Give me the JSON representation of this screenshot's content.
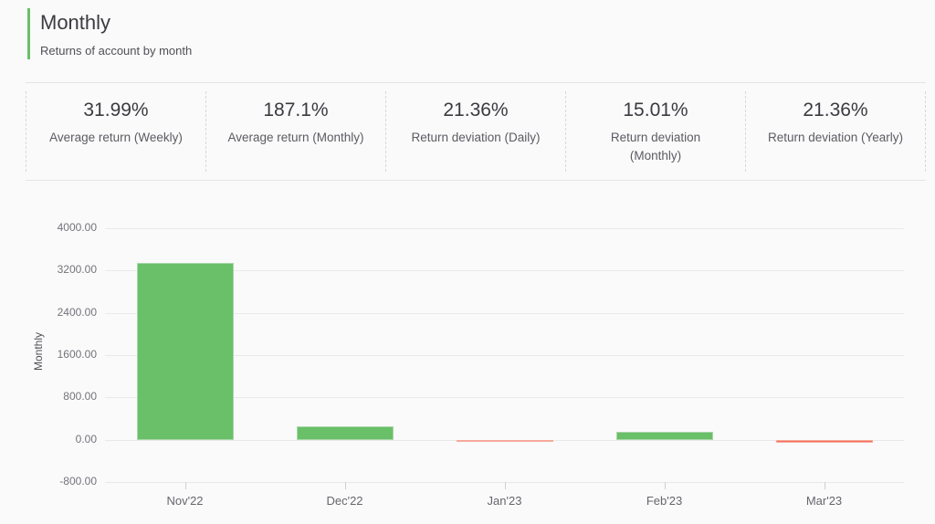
{
  "header": {
    "title": "Monthly",
    "subtitle": "Returns of account by month",
    "accent_color": "#6abf69"
  },
  "stats": [
    {
      "value": "31.99%",
      "label": "Average return (Weekly)"
    },
    {
      "value": "187.1%",
      "label": "Average return (Monthly)"
    },
    {
      "value": "21.36%",
      "label": "Return deviation (Daily)"
    },
    {
      "value": "15.01%",
      "label": "Return deviation\n(Monthly)"
    },
    {
      "value": "21.36%",
      "label": "Return deviation (Yearly)"
    }
  ],
  "chart_data": {
    "type": "bar",
    "categories": [
      "Nov'22",
      "Dec'22",
      "Jan'23",
      "Feb'23",
      "Mar'23"
    ],
    "values": [
      3340,
      250,
      -30,
      150,
      -50
    ],
    "title": "",
    "xlabel": "",
    "ylabel": "Monthly",
    "ylim": [
      -800,
      4000
    ],
    "yticks": [
      -800,
      0,
      800,
      1600,
      2400,
      3200,
      4000
    ],
    "ytick_decimals": 2,
    "grid": true,
    "legend": "none",
    "positive_color": "#6abf69",
    "negative_color": "#f3705a"
  }
}
